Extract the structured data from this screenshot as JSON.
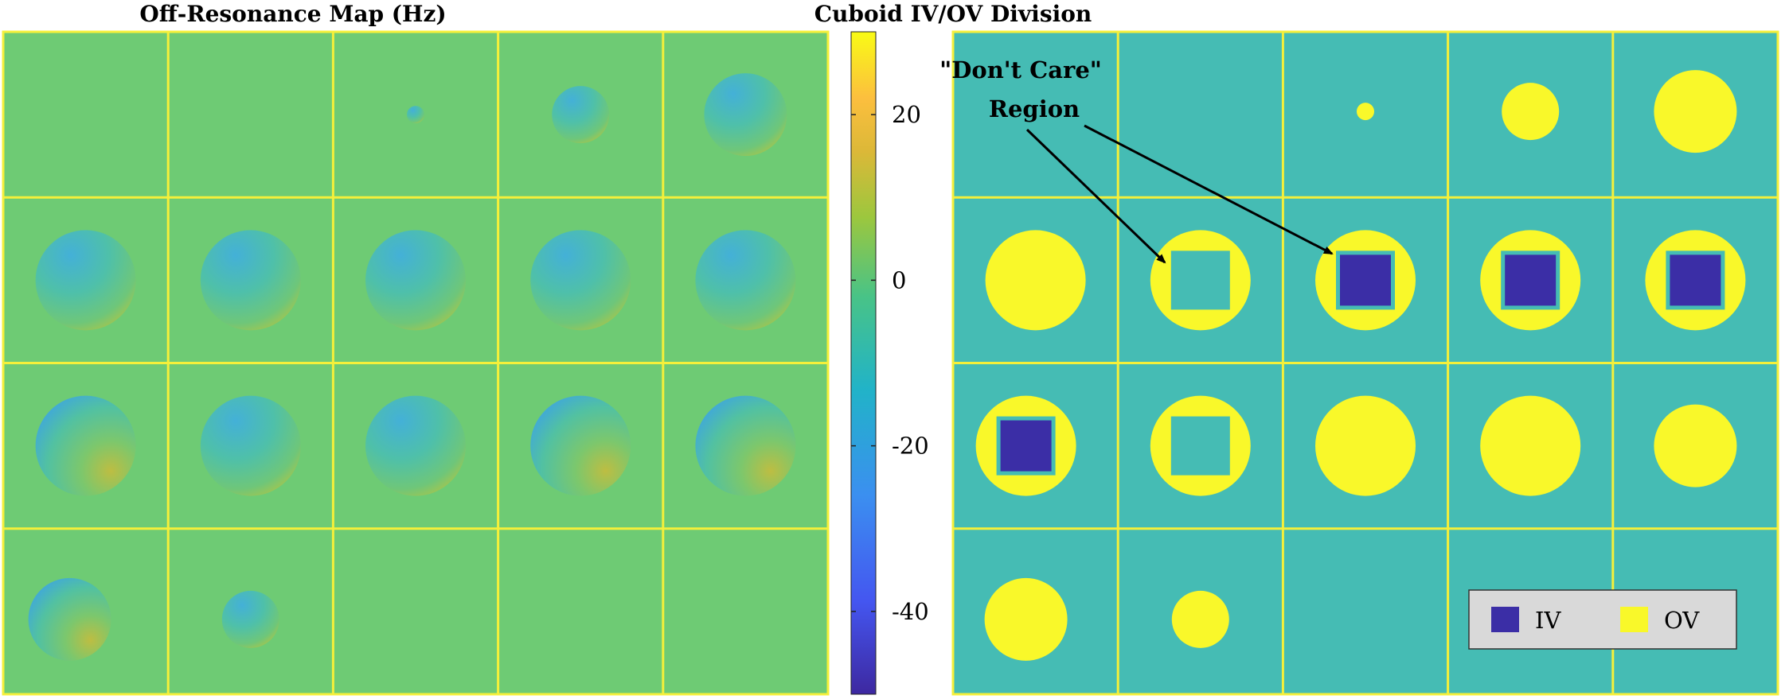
{
  "chart_data": [
    {
      "type": "heatmap",
      "title": "Off-Resonance Map (Hz)",
      "grid": {
        "rows": 4,
        "cols": 5
      },
      "colorbar": {
        "min": -50,
        "max": 30,
        "ticks": [
          20,
          0,
          -20,
          -40
        ],
        "tick_labels": [
          "20",
          "0",
          "-20",
          "-40"
        ]
      },
      "slices": [
        {
          "row": 0,
          "col": 0,
          "tissue": "none"
        },
        {
          "row": 0,
          "col": 1,
          "tissue": "none"
        },
        {
          "row": 0,
          "col": 2,
          "tissue": "tiny"
        },
        {
          "row": 0,
          "col": 3,
          "tissue": "small"
        },
        {
          "row": 0,
          "col": 4,
          "tissue": "medium"
        },
        {
          "row": 1,
          "col": 0,
          "tissue": "large"
        },
        {
          "row": 1,
          "col": 1,
          "tissue": "large"
        },
        {
          "row": 1,
          "col": 2,
          "tissue": "large"
        },
        {
          "row": 1,
          "col": 3,
          "tissue": "large"
        },
        {
          "row": 1,
          "col": 4,
          "tissue": "large"
        },
        {
          "row": 2,
          "col": 0,
          "tissue": "large"
        },
        {
          "row": 2,
          "col": 1,
          "tissue": "large"
        },
        {
          "row": 2,
          "col": 2,
          "tissue": "large"
        },
        {
          "row": 2,
          "col": 3,
          "tissue": "large"
        },
        {
          "row": 2,
          "col": 4,
          "tissue": "large"
        },
        {
          "row": 3,
          "col": 0,
          "tissue": "medium"
        },
        {
          "row": 3,
          "col": 1,
          "tissue": "small"
        },
        {
          "row": 3,
          "col": 2,
          "tissue": "none"
        },
        {
          "row": 3,
          "col": 3,
          "tissue": "none"
        },
        {
          "row": 3,
          "col": 4,
          "tissue": "none"
        }
      ]
    },
    {
      "type": "heatmap",
      "title": "Cuboid IV/OV Division",
      "grid": {
        "rows": 4,
        "cols": 5
      },
      "annotation": {
        "line1": "\"Don't Care\"",
        "line2": "Region"
      },
      "legend": {
        "placement": "bottom-right",
        "entries": [
          {
            "label": "IV",
            "color": "#3b2ea6"
          },
          {
            "label": "OV",
            "color": "#f9f82a"
          }
        ]
      },
      "slices": [
        {
          "row": 0,
          "col": 0,
          "ov": "none",
          "iv": "none"
        },
        {
          "row": 0,
          "col": 1,
          "ov": "none",
          "iv": "none"
        },
        {
          "row": 0,
          "col": 2,
          "ov": "tiny",
          "iv": "none"
        },
        {
          "row": 0,
          "col": 3,
          "ov": "small",
          "iv": "none"
        },
        {
          "row": 0,
          "col": 4,
          "ov": "medium",
          "iv": "none"
        },
        {
          "row": 1,
          "col": 0,
          "ov": "large",
          "iv": "none"
        },
        {
          "row": 1,
          "col": 1,
          "ov": "large",
          "iv": "dont-care"
        },
        {
          "row": 1,
          "col": 2,
          "ov": "large",
          "iv": "cuboid"
        },
        {
          "row": 1,
          "col": 3,
          "ov": "large",
          "iv": "cuboid"
        },
        {
          "row": 1,
          "col": 4,
          "ov": "large",
          "iv": "cuboid"
        },
        {
          "row": 2,
          "col": 0,
          "ov": "large",
          "iv": "cuboid"
        },
        {
          "row": 2,
          "col": 1,
          "ov": "large",
          "iv": "dont-care"
        },
        {
          "row": 2,
          "col": 2,
          "ov": "large",
          "iv": "none"
        },
        {
          "row": 2,
          "col": 3,
          "ov": "large",
          "iv": "none"
        },
        {
          "row": 2,
          "col": 4,
          "ov": "medium",
          "iv": "none"
        },
        {
          "row": 3,
          "col": 0,
          "ov": "medium",
          "iv": "none"
        },
        {
          "row": 3,
          "col": 1,
          "ov": "small",
          "iv": "none"
        },
        {
          "row": 3,
          "col": 2,
          "ov": "none",
          "iv": "none"
        },
        {
          "row": 3,
          "col": 3,
          "ov": "none",
          "iv": "none"
        },
        {
          "row": 3,
          "col": 4,
          "ov": "none",
          "iv": "none"
        }
      ]
    }
  ],
  "colors": {
    "left_background": "#6ecb74",
    "right_background": "#45bcb4",
    "grid_line": "#f5f03a",
    "iv": "#3b2ea6",
    "ov": "#f9f82a",
    "legend_bg": "#d9d9d9"
  }
}
